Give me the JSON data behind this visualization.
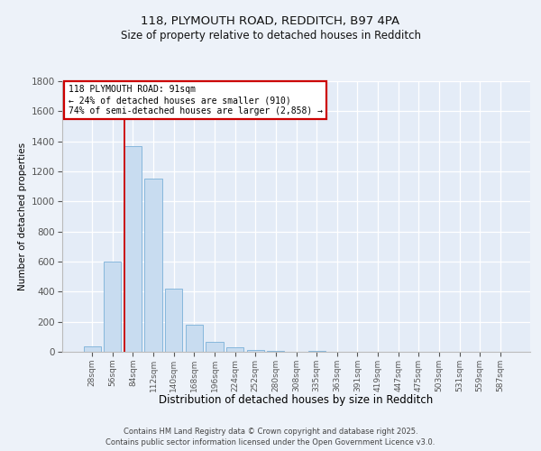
{
  "title_line1": "118, PLYMOUTH ROAD, REDDITCH, B97 4PA",
  "title_line2": "Size of property relative to detached houses in Redditch",
  "xlabel": "Distribution of detached houses by size in Redditch",
  "ylabel": "Number of detached properties",
  "footnote": "Contains HM Land Registry data © Crown copyright and database right 2025.\nContains public sector information licensed under the Open Government Licence v3.0.",
  "bar_labels": [
    "28sqm",
    "56sqm",
    "84sqm",
    "112sqm",
    "140sqm",
    "168sqm",
    "196sqm",
    "224sqm",
    "252sqm",
    "280sqm",
    "308sqm",
    "335sqm",
    "363sqm",
    "391sqm",
    "419sqm",
    "447sqm",
    "475sqm",
    "503sqm",
    "531sqm",
    "559sqm",
    "587sqm"
  ],
  "bar_values": [
    35,
    600,
    1370,
    1150,
    420,
    180,
    65,
    30,
    10,
    5,
    0,
    5,
    0,
    0,
    0,
    0,
    0,
    0,
    0,
    0,
    0
  ],
  "bar_color": "#c8dcf0",
  "bar_edge_color": "#7ab0d8",
  "annotation_text": "118 PLYMOUTH ROAD: 91sqm\n← 24% of detached houses are smaller (910)\n74% of semi-detached houses are larger (2,858) →",
  "vline_x": 1.57,
  "vline_color": "#cc0000",
  "annotation_box_edgecolor": "#cc0000",
  "background_color": "#edf2f9",
  "plot_bg_color": "#e4ecf7",
  "grid_color": "#ffffff",
  "ylim": [
    0,
    1800
  ],
  "yticks": [
    0,
    200,
    400,
    600,
    800,
    1000,
    1200,
    1400,
    1600,
    1800
  ]
}
